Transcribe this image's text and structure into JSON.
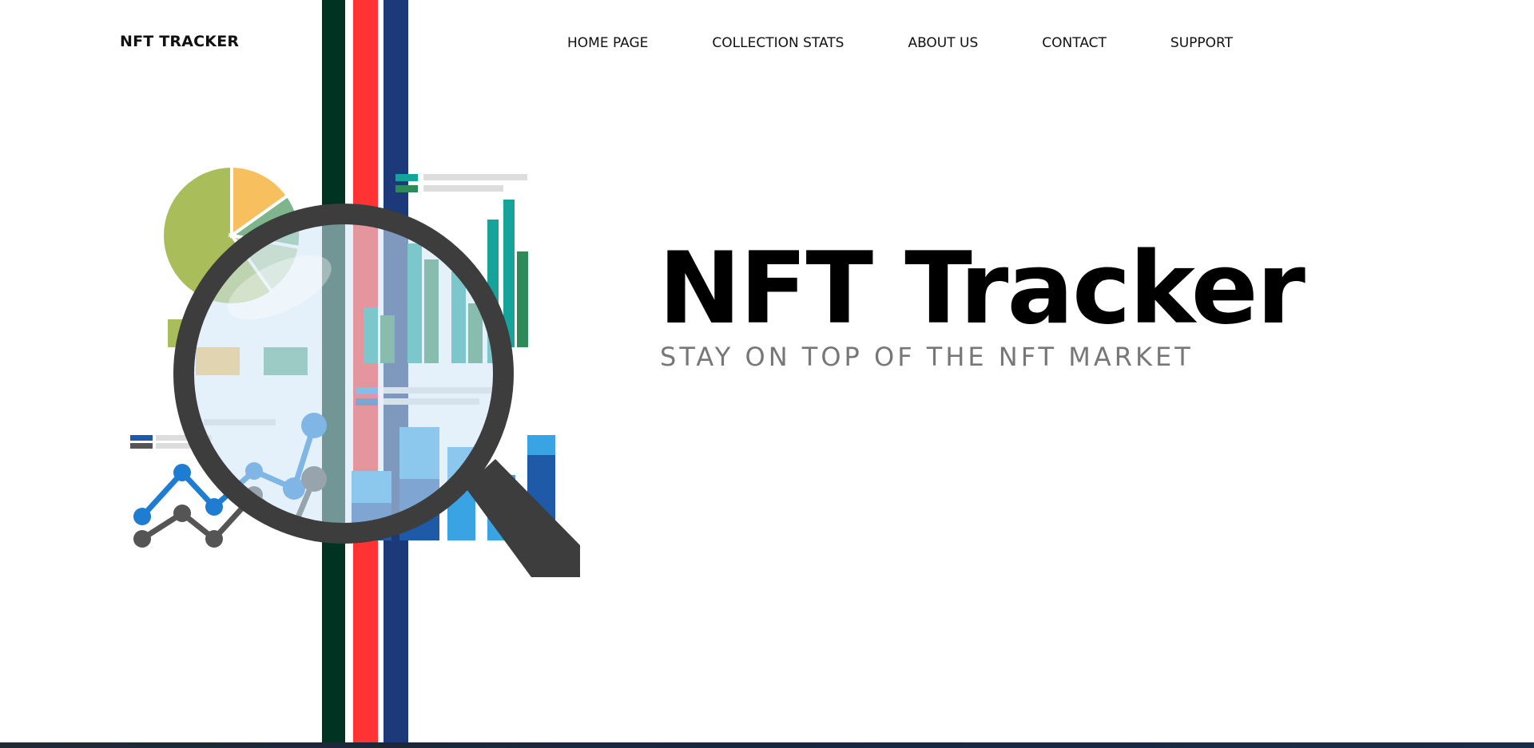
{
  "header": {
    "brand": "NFT TRACKER",
    "nav": [
      {
        "label": "HOME PAGE"
      },
      {
        "label": "COLLECTION STATS"
      },
      {
        "label": "ABOUT US"
      },
      {
        "label": "CONTACT"
      },
      {
        "label": "SUPPORT"
      }
    ]
  },
  "hero": {
    "title": "NFT Tracker",
    "subtitle": "STAY ON TOP OF THE NFT MARKET"
  },
  "illustration": {
    "icon": "analytics-magnifier-icon"
  },
  "colors": {
    "stripe_green": "#003322",
    "stripe_red": "#ff3333",
    "stripe_blue": "#1c3a7a"
  }
}
